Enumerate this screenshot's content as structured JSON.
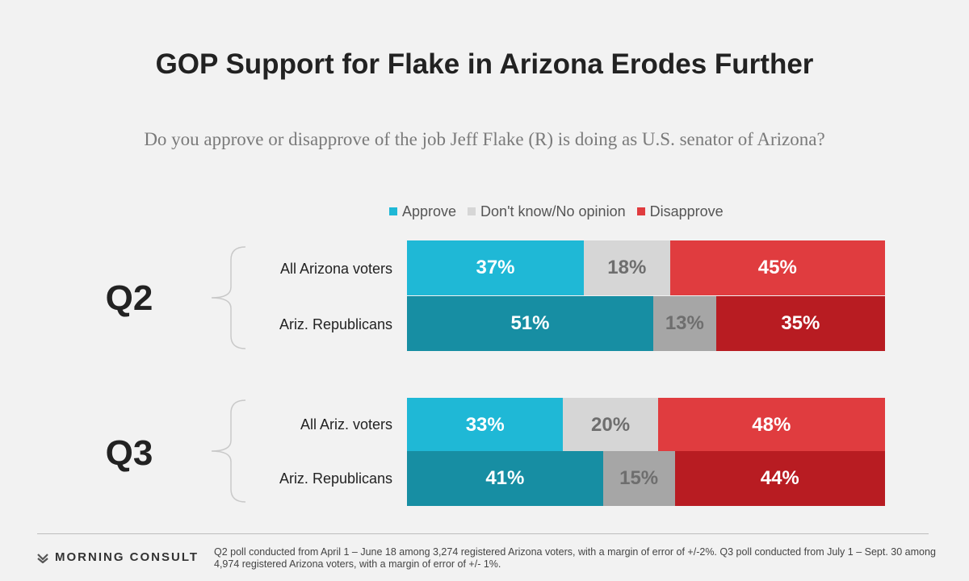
{
  "title": "GOP Support for Flake in Arizona Erodes Further",
  "subtitle": "Do you approve or disapprove of the job Jeff Flake (R) is doing as U.S. senator of Arizona?",
  "legend": [
    {
      "label": "Approve",
      "color": "#1fb8d6"
    },
    {
      "label": "Don't know/No opinion",
      "color": "#d6d6d6"
    },
    {
      "label": "Disapprove",
      "color": "#e03c3f"
    }
  ],
  "chart_data": {
    "type": "bar",
    "orientation": "horizontal",
    "stacked": true,
    "percent": true,
    "groups": [
      "Q2",
      "Q2",
      "Q3",
      "Q3"
    ],
    "categories": [
      "All Arizona voters",
      "Ariz. Republicans",
      "All Ariz. voters",
      "Ariz. Republicans"
    ],
    "series": [
      {
        "name": "Approve",
        "values": [
          37,
          51,
          33,
          41
        ],
        "labels": [
          "37%",
          "51%",
          "33%",
          "41%"
        ]
      },
      {
        "name": "Don't know/No opinion",
        "values": [
          18,
          13,
          20,
          15
        ],
        "labels": [
          "18%",
          "13%",
          "20%",
          "15%"
        ]
      },
      {
        "name": "Disapprove",
        "values": [
          45,
          35,
          48,
          44
        ],
        "labels": [
          "45%",
          "35%",
          "48%",
          "44%"
        ]
      }
    ],
    "colors": {
      "all_voters": [
        "#1fb8d6",
        "#d6d6d6",
        "#e03c3f"
      ],
      "republicans": [
        "#178ea3",
        "#a6a6a6",
        "#b81c22"
      ]
    },
    "legend_position": "top"
  },
  "group_labels": [
    "Q2",
    "Q3"
  ],
  "footer": {
    "logo_text": "MORNING CONSULT",
    "note": "Q2 poll conducted from April 1 – June 18 among 3,274 registered Arizona voters, with a margin of error of +/-2%. Q3 poll conducted from July 1 – Sept. 30 among 4,974 registered Arizona voters, with a margin of error of +/- 1%."
  }
}
